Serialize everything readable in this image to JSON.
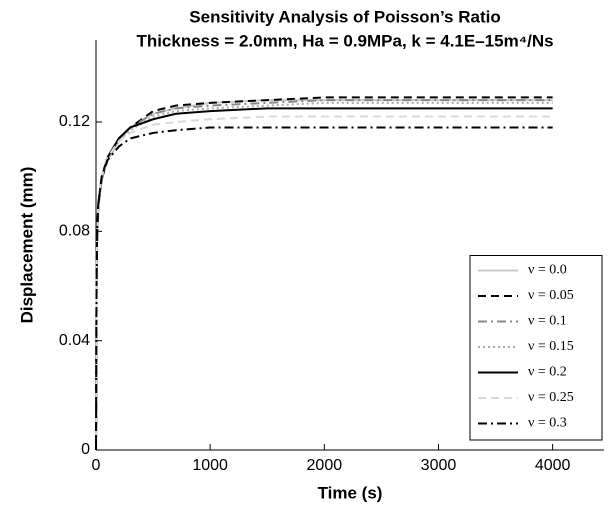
{
  "chart_data": {
    "type": "line",
    "title": "Sensitivity Analysis of Poisson’s Ratio",
    "subtitle": "Thickness = 2.0mm, Ha = 0.9MPa, k = 4.1E–15m⁴/Ns",
    "xlabel": "Time (s)",
    "ylabel": "Displacement (mm)",
    "x": [
      0,
      5,
      10,
      20,
      50,
      100,
      200,
      300,
      500,
      700,
      1000,
      1500,
      2000,
      3000,
      4000
    ],
    "series": [
      {
        "name": "ν = 0.0",
        "color": "#c8c8c8",
        "linestyle": "solid",
        "values": [
          0,
          0.062,
          0.078,
          0.089,
          0.099,
          0.106,
          0.113,
          0.118,
          0.123,
          0.125,
          0.127,
          0.128,
          0.128,
          0.128,
          0.128
        ]
      },
      {
        "name": "ν = 0.05",
        "color": "#000000",
        "linestyle": "dashed",
        "values": [
          0,
          0.062,
          0.078,
          0.089,
          0.099,
          0.106,
          0.114,
          0.118,
          0.124,
          0.126,
          0.127,
          0.128,
          0.129,
          0.129,
          0.129
        ]
      },
      {
        "name": "ν = 0.1",
        "color": "#888888",
        "linestyle": "dashdot",
        "values": [
          0,
          0.062,
          0.078,
          0.089,
          0.099,
          0.106,
          0.114,
          0.118,
          0.123,
          0.125,
          0.126,
          0.127,
          0.128,
          0.128,
          0.128
        ]
      },
      {
        "name": "ν = 0.15",
        "color": "#aaaaaa",
        "linestyle": "dotted",
        "values": [
          0,
          0.062,
          0.078,
          0.089,
          0.099,
          0.106,
          0.113,
          0.117,
          0.122,
          0.124,
          0.125,
          0.126,
          0.127,
          0.127,
          0.127
        ]
      },
      {
        "name": "ν = 0.2",
        "color": "#000000",
        "linestyle": "solid",
        "values": [
          0,
          0.063,
          0.079,
          0.09,
          0.1,
          0.107,
          0.114,
          0.118,
          0.121,
          0.123,
          0.124,
          0.125,
          0.125,
          0.125,
          0.125
        ]
      },
      {
        "name": "ν = 0.25",
        "color": "#d8d8d8",
        "linestyle": "dashed",
        "values": [
          0,
          0.063,
          0.079,
          0.09,
          0.1,
          0.107,
          0.113,
          0.116,
          0.119,
          0.12,
          0.121,
          0.122,
          0.122,
          0.122,
          0.122
        ]
      },
      {
        "name": "ν = 0.3",
        "color": "#000000",
        "linestyle": "dashdot",
        "values": [
          0,
          0.063,
          0.079,
          0.09,
          0.1,
          0.106,
          0.111,
          0.114,
          0.116,
          0.117,
          0.118,
          0.118,
          0.118,
          0.118,
          0.118
        ]
      }
    ],
    "xlim": [
      0,
      4450
    ],
    "xticks": [
      0,
      1000,
      2000,
      3000,
      4000
    ],
    "ylim": [
      0,
      0.15
    ],
    "yticks": [
      0,
      0.04,
      0.08,
      0.12
    ],
    "legend": "lower right",
    "grid": false
  }
}
